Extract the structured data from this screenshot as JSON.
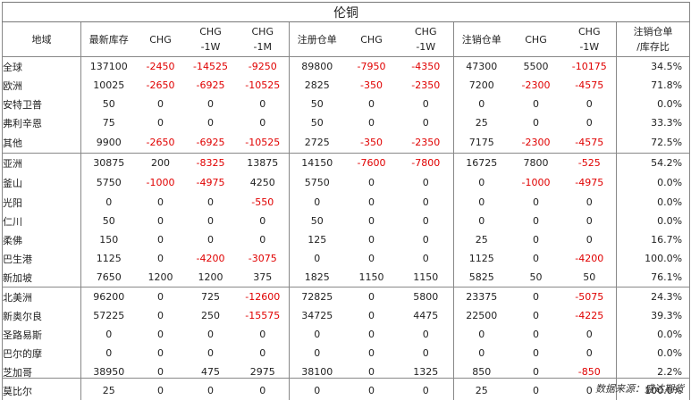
{
  "title": "伦铜",
  "headers": [
    [
      "地域"
    ],
    [
      "最新库存"
    ],
    [
      "CHG"
    ],
    [
      "CHG",
      "-1W"
    ],
    [
      "CHG",
      "-1M"
    ],
    [
      "注册仓单"
    ],
    [
      "CHG"
    ],
    [
      "CHG",
      "-1W"
    ],
    [
      "注销仓单"
    ],
    [
      "CHG"
    ],
    [
      "CHG",
      "-1W"
    ],
    [
      "注销仓单",
      "/库存比"
    ]
  ],
  "rows": [
    {
      "name": "全球",
      "vals": [
        "137100",
        "-2450",
        "-14525",
        "-9250",
        "89800",
        "-7950",
        "-4350",
        "47300",
        "5500",
        "-10175",
        "34.5%"
      ]
    },
    {
      "name": "欧洲",
      "vals": [
        "10025",
        "-2650",
        "-6925",
        "-10525",
        "2825",
        "-350",
        "-2350",
        "7200",
        "-2300",
        "-4575",
        "71.8%"
      ]
    },
    {
      "name": "安特卫普",
      "vals": [
        "50",
        "0",
        "0",
        "0",
        "50",
        "0",
        "0",
        "0",
        "0",
        "0",
        "0.0%"
      ]
    },
    {
      "name": "弗利辛恩",
      "vals": [
        "75",
        "0",
        "0",
        "0",
        "50",
        "0",
        "0",
        "25",
        "0",
        "0",
        "33.3%"
      ]
    },
    {
      "name": "其他",
      "vals": [
        "9900",
        "-2650",
        "-6925",
        "-10525",
        "2725",
        "-350",
        "-2350",
        "7175",
        "-2300",
        "-4575",
        "72.5%"
      ]
    },
    {
      "name": "亚洲",
      "vals": [
        "30875",
        "200",
        "-8325",
        "13875",
        "14150",
        "-7600",
        "-7800",
        "16725",
        "7800",
        "-525",
        "54.2%"
      ]
    },
    {
      "name": "釜山",
      "vals": [
        "5750",
        "-1000",
        "-4975",
        "4250",
        "5750",
        "0",
        "0",
        "0",
        "-1000",
        "-4975",
        "0.0%"
      ]
    },
    {
      "name": "光阳",
      "vals": [
        "0",
        "0",
        "0",
        "-550",
        "0",
        "0",
        "0",
        "0",
        "0",
        "0",
        "0.0%"
      ]
    },
    {
      "name": "仁川",
      "vals": [
        "50",
        "0",
        "0",
        "0",
        "50",
        "0",
        "0",
        "0",
        "0",
        "0",
        "0.0%"
      ]
    },
    {
      "name": "柔佛",
      "vals": [
        "150",
        "0",
        "0",
        "0",
        "125",
        "0",
        "0",
        "25",
        "0",
        "0",
        "16.7%"
      ]
    },
    {
      "name": "巴生港",
      "vals": [
        "1125",
        "0",
        "-4200",
        "-3075",
        "0",
        "0",
        "0",
        "1125",
        "0",
        "-4200",
        "100.0%"
      ]
    },
    {
      "name": "新加坡",
      "vals": [
        "7650",
        "1200",
        "1200",
        "375",
        "1825",
        "1150",
        "1150",
        "5825",
        "50",
        "50",
        "76.1%"
      ]
    },
    {
      "name": "北美洲",
      "vals": [
        "96200",
        "0",
        "725",
        "-12600",
        "72825",
        "0",
        "5800",
        "23375",
        "0",
        "-5075",
        "24.3%"
      ]
    },
    {
      "name": "新奥尔良",
      "vals": [
        "57225",
        "0",
        "250",
        "-15575",
        "34725",
        "0",
        "4475",
        "22500",
        "0",
        "-4225",
        "39.3%"
      ]
    },
    {
      "name": "圣路易斯",
      "vals": [
        "0",
        "0",
        "0",
        "0",
        "0",
        "0",
        "0",
        "0",
        "0",
        "0",
        "0.0%"
      ]
    },
    {
      "name": "巴尔的摩",
      "vals": [
        "0",
        "0",
        "0",
        "0",
        "0",
        "0",
        "0",
        "0",
        "0",
        "0",
        "0.0%"
      ]
    },
    {
      "name": "芝加哥",
      "vals": [
        "38950",
        "0",
        "475",
        "2975",
        "38100",
        "0",
        "1325",
        "850",
        "0",
        "-850",
        "2.2%"
      ]
    },
    {
      "name": "莫比尔",
      "vals": [
        "25",
        "0",
        "0",
        "0",
        "0",
        "0",
        "0",
        "25",
        "0",
        "0",
        "100.0%"
      ]
    }
  ],
  "source": "数据来源：盛达期货",
  "colors": {
    "negative": "#e00000",
    "text": "#222222",
    "rule": "#888888"
  }
}
